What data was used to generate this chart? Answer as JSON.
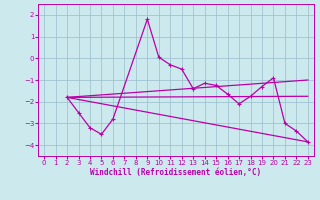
{
  "xlabel": "Windchill (Refroidissement éolien,°C)",
  "background_color": "#cceaed",
  "line_color": "#bb00aa",
  "grid_color": "#99bbcc",
  "xlim": [
    -0.5,
    23.5
  ],
  "ylim": [
    -4.5,
    2.5
  ],
  "yticks": [
    2,
    1,
    0,
    -1,
    -2,
    -3,
    -4
  ],
  "xticks": [
    0,
    1,
    2,
    3,
    4,
    5,
    6,
    7,
    8,
    9,
    10,
    11,
    12,
    13,
    14,
    15,
    16,
    17,
    18,
    19,
    20,
    21,
    22,
    23
  ],
  "lines": [
    {
      "x": [
        2,
        3,
        4,
        5,
        6,
        9,
        10,
        11,
        12,
        13,
        14,
        15,
        16,
        17,
        18,
        19,
        20,
        21,
        22,
        23
      ],
      "y": [
        -1.8,
        -2.5,
        -3.2,
        -3.5,
        -2.8,
        1.8,
        0.05,
        -0.3,
        -0.5,
        -1.4,
        -1.15,
        -1.25,
        -1.65,
        -2.1,
        -1.75,
        -1.3,
        -0.9,
        -3.0,
        -3.35,
        -3.85
      ],
      "markers": true
    },
    {
      "x": [
        2,
        23
      ],
      "y": [
        -1.8,
        -1.0
      ],
      "markers": false
    },
    {
      "x": [
        2,
        23
      ],
      "y": [
        -1.8,
        -1.75
      ],
      "markers": false
    },
    {
      "x": [
        2,
        23
      ],
      "y": [
        -1.8,
        -3.85
      ],
      "markers": false
    }
  ]
}
